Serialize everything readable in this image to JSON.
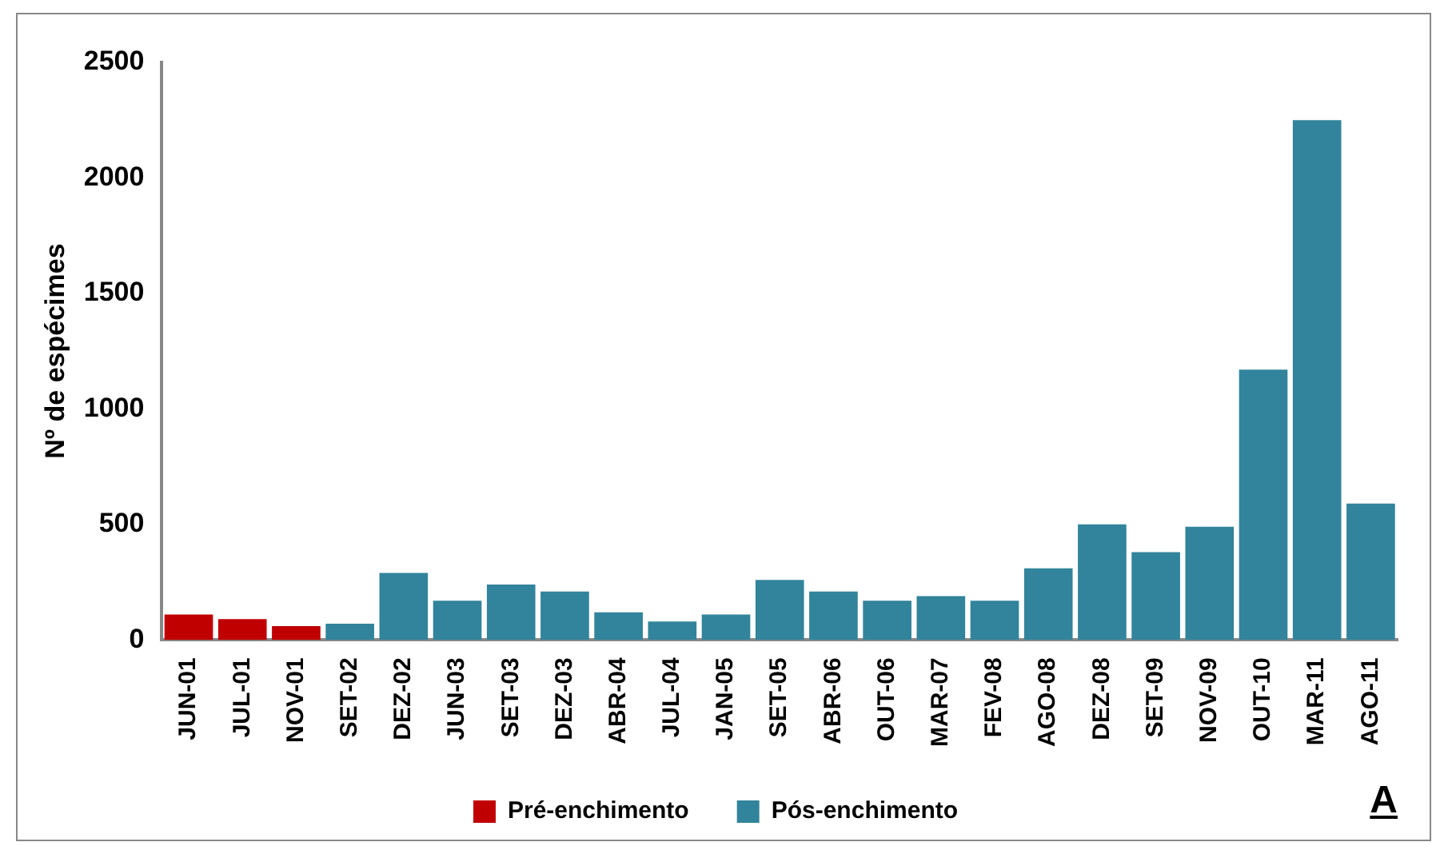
{
  "chart_data": {
    "type": "bar",
    "ylabel": "Nº de espécimes",
    "categories": [
      "JUN-01",
      "JUL-01",
      "NOV-01",
      "SET-02",
      "DEZ-02",
      "JUN-03",
      "SET-03",
      "DEZ-03",
      "ABR-04",
      "JUL-04",
      "JAN-05",
      "SET-05",
      "ABR-06",
      "OUT-06",
      "MAR-07",
      "FEV-08",
      "AGO-08",
      "DEZ-08",
      "SET-09",
      "NOV-09",
      "OUT-10",
      "MAR-11",
      "AGO-11"
    ],
    "series": [
      {
        "name": "Pré-enchimento",
        "color": "#c00000",
        "values": [
          110,
          90,
          60,
          null,
          null,
          null,
          null,
          null,
          null,
          null,
          null,
          null,
          null,
          null,
          null,
          null,
          null,
          null,
          null,
          null,
          null,
          null,
          null
        ]
      },
      {
        "name": "Pós-enchimento",
        "color": "#31849b",
        "values": [
          null,
          null,
          null,
          70,
          290,
          170,
          240,
          210,
          120,
          80,
          110,
          260,
          210,
          170,
          190,
          170,
          310,
          500,
          380,
          490,
          1170,
          2250,
          590
        ]
      }
    ],
    "ylim": [
      0,
      2500
    ],
    "yticks": [
      0,
      500,
      1000,
      1500,
      2000,
      2500
    ],
    "grid": false,
    "legend": "bottom",
    "annotations": [
      "A"
    ]
  }
}
